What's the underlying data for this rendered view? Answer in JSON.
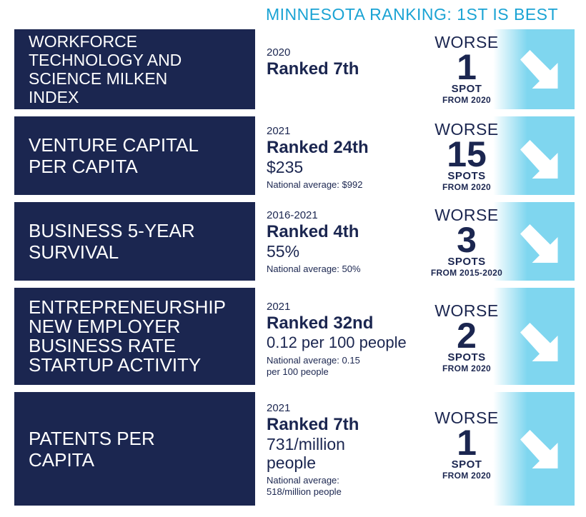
{
  "header": {
    "title": "MINNESOTA RANKING: 1ST IS BEST"
  },
  "colors": {
    "navy": "#1b2650",
    "light_blue": "#7fd6ef",
    "header_blue": "#1aa3d4"
  },
  "rows": [
    {
      "label": "WORKFORCE TECHNOLOGY AND SCIENCE MILKEN INDEX",
      "year": "2020",
      "rank": "Ranked 7th",
      "value": "",
      "national": "",
      "change_word": "WORSE",
      "change_num": "1",
      "change_unit": "SPOT",
      "change_from": "FROM 2020",
      "icon": "arrow-down-right-icon"
    },
    {
      "label": "VENTURE CAPITAL PER CAPITA",
      "year": "2021",
      "rank": "Ranked 24th",
      "value": "$235",
      "national": "National average: $992",
      "change_word": "WORSE",
      "change_num": "15",
      "change_unit": "SPOTS",
      "change_from": "FROM 2020",
      "icon": "arrow-down-right-icon"
    },
    {
      "label": "BUSINESS 5-YEAR SURVIVAL",
      "year": "2016-2021",
      "rank": "Ranked 4th",
      "value": "55%",
      "national": "National average: 50%",
      "change_word": "WORSE",
      "change_num": "3",
      "change_unit": "SPOTS",
      "change_from": "FROM 2015-2020",
      "icon": "arrow-down-right-icon"
    },
    {
      "label": "ENTREPRENEURSHIP NEW EMPLOYER BUSINESS RATE STARTUP ACTIVITY",
      "year": "2021",
      "rank": "Ranked 32nd",
      "value": "0.12 per 100 people",
      "national": "National average: 0.15 per 100 people",
      "change_word": "WORSE",
      "change_num": "2",
      "change_unit": "SPOTS",
      "change_from": "FROM 2020",
      "icon": "arrow-down-right-icon"
    },
    {
      "label": "PATENTS PER CAPITA",
      "year": "2021",
      "rank": "Ranked 7th",
      "value": "731/million people",
      "national": "National average: 518/million people",
      "change_word": "WORSE",
      "change_num": "1",
      "change_unit": "SPOT",
      "change_from": "FROM 2020",
      "icon": "arrow-down-right-icon"
    }
  ]
}
